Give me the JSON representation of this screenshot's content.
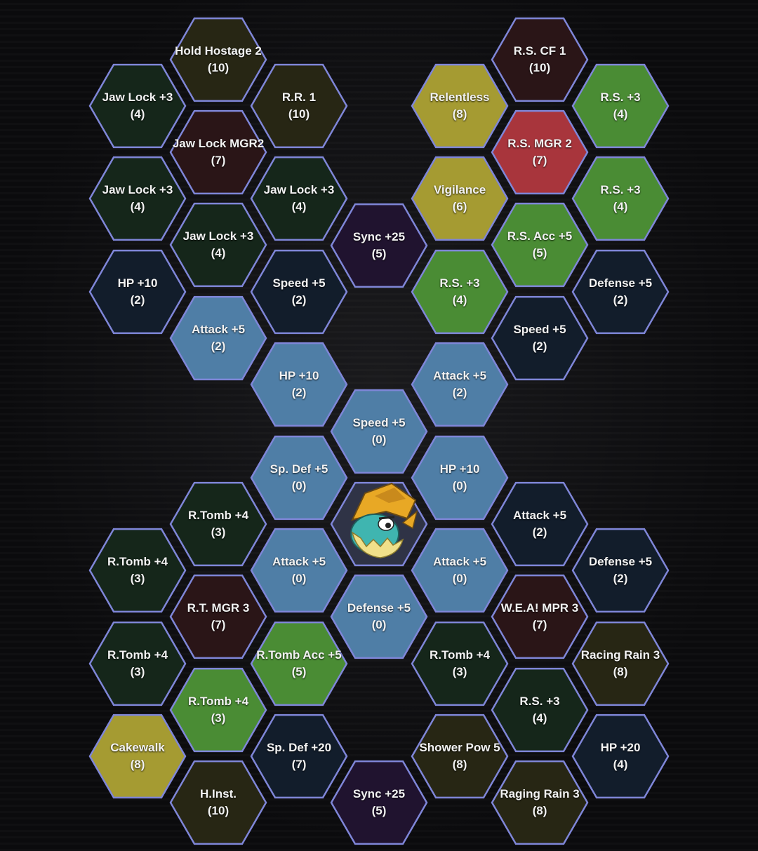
{
  "colors": {
    "border": "#7f86d8",
    "blue": "#4f7ea6",
    "green": "#4a8c34",
    "gold": "#a59b32",
    "red": "#a8353c",
    "dark-green": "#15261a",
    "dark-navy": "#121d2b",
    "dark-olive": "#272614",
    "dark-maroon": "#2a1517",
    "dark-purple": "#20132f",
    "center": "#2f3346"
  },
  "center": {
    "pokemon_icon": "drednaw-pokemon-icon"
  },
  "tiles": [
    {
      "name": "Hold Hostage 2",
      "cost": "(10)",
      "fill": "dark-olive"
    },
    {
      "name": "Jaw Lock +3",
      "cost": "(4)",
      "fill": "dark-green"
    },
    {
      "name": "R.R. 1",
      "cost": "(10)",
      "fill": "dark-olive"
    },
    {
      "name": "Jaw Lock MGR2",
      "cost": "(7)",
      "fill": "dark-maroon"
    },
    {
      "name": "Jaw Lock +3",
      "cost": "(4)",
      "fill": "dark-green"
    },
    {
      "name": "Jaw Lock +3",
      "cost": "(4)",
      "fill": "dark-green"
    },
    {
      "name": "Jaw Lock +3",
      "cost": "(4)",
      "fill": "dark-green"
    },
    {
      "name": "HP +10",
      "cost": "(2)",
      "fill": "dark-navy"
    },
    {
      "name": "Speed +5",
      "cost": "(2)",
      "fill": "dark-navy"
    },
    {
      "name": "Attack +5",
      "cost": "(2)",
      "fill": "blue"
    },
    {
      "name": "HP +10",
      "cost": "(2)",
      "fill": "blue"
    },
    {
      "name": "Sync +25",
      "cost": "(5)",
      "fill": "dark-purple"
    },
    {
      "name": "R.S. CF 1",
      "cost": "(10)",
      "fill": "dark-maroon"
    },
    {
      "name": "Relentless",
      "cost": "(8)",
      "fill": "gold"
    },
    {
      "name": "R.S. +3",
      "cost": "(4)",
      "fill": "green"
    },
    {
      "name": "R.S. MGR 2",
      "cost": "(7)",
      "fill": "red"
    },
    {
      "name": "Vigilance",
      "cost": "(6)",
      "fill": "gold"
    },
    {
      "name": "R.S. +3",
      "cost": "(4)",
      "fill": "green"
    },
    {
      "name": "R.S. Acc +5",
      "cost": "(5)",
      "fill": "green"
    },
    {
      "name": "R.S. +3",
      "cost": "(4)",
      "fill": "green"
    },
    {
      "name": "Defense +5",
      "cost": "(2)",
      "fill": "dark-navy"
    },
    {
      "name": "Speed +5",
      "cost": "(2)",
      "fill": "dark-navy"
    },
    {
      "name": "Attack +5",
      "cost": "(2)",
      "fill": "blue"
    },
    {
      "name": "Speed +5",
      "cost": "(0)",
      "fill": "blue"
    },
    {
      "name": "Sp. Def +5",
      "cost": "(0)",
      "fill": "blue"
    },
    {
      "name": "HP +10",
      "cost": "(0)",
      "fill": "blue"
    },
    {
      "name": "R.Tomb +4",
      "cost": "(3)",
      "fill": "dark-green"
    },
    {
      "name": "Attack +5",
      "cost": "(2)",
      "fill": "dark-navy"
    },
    {
      "name": "R.Tomb +4",
      "cost": "(3)",
      "fill": "dark-green"
    },
    {
      "name": "Attack +5",
      "cost": "(0)",
      "fill": "blue"
    },
    {
      "name": "Attack +5",
      "cost": "(0)",
      "fill": "blue"
    },
    {
      "name": "Defense +5",
      "cost": "(2)",
      "fill": "dark-navy"
    },
    {
      "name": "R.T. MGR 3",
      "cost": "(7)",
      "fill": "dark-maroon"
    },
    {
      "name": "Defense +5",
      "cost": "(0)",
      "fill": "blue"
    },
    {
      "name": "W.E.A! MPR 3",
      "cost": "(7)",
      "fill": "dark-maroon"
    },
    {
      "name": "R.Tomb +4",
      "cost": "(3)",
      "fill": "dark-green"
    },
    {
      "name": "R.Tomb Acc +5",
      "cost": "(5)",
      "fill": "green"
    },
    {
      "name": "R.Tomb +4",
      "cost": "(3)",
      "fill": "dark-green"
    },
    {
      "name": "Racing Rain 3",
      "cost": "(8)",
      "fill": "dark-olive"
    },
    {
      "name": "R.Tomb +4",
      "cost": "(3)",
      "fill": "green"
    },
    {
      "name": "R.S. +3",
      "cost": "(4)",
      "fill": "dark-green"
    },
    {
      "name": "Cakewalk",
      "cost": "(8)",
      "fill": "gold"
    },
    {
      "name": "Sp. Def +20",
      "cost": "(7)",
      "fill": "dark-navy"
    },
    {
      "name": "Shower Pow 5",
      "cost": "(8)",
      "fill": "dark-olive"
    },
    {
      "name": "HP +20",
      "cost": "(4)",
      "fill": "dark-navy"
    },
    {
      "name": "H.Inst.",
      "cost": "(10)",
      "fill": "dark-olive"
    },
    {
      "name": "Sync +25",
      "cost": "(5)",
      "fill": "dark-purple"
    },
    {
      "name": "Raging Rain 3",
      "cost": "(8)",
      "fill": "dark-olive"
    }
  ]
}
